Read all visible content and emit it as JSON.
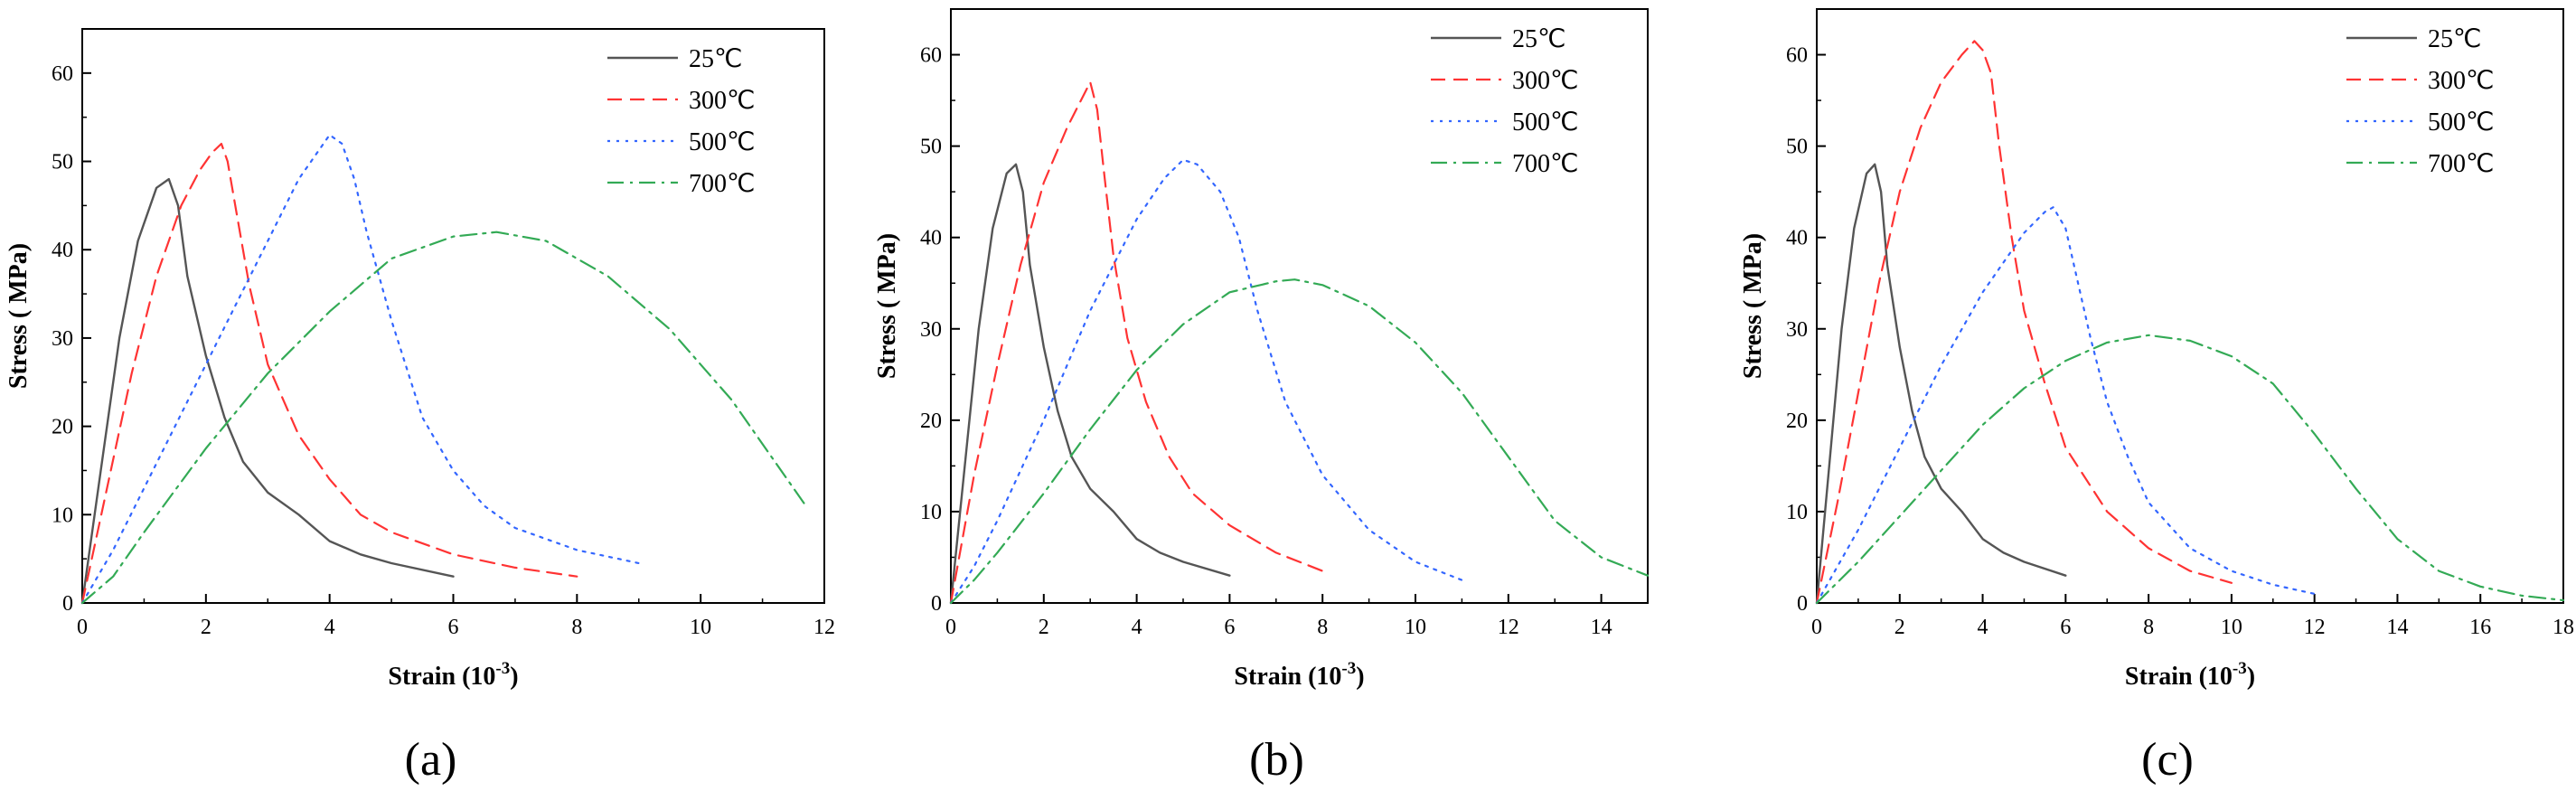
{
  "chart_data": [
    {
      "type": "line",
      "panel_label": "(a)",
      "xlabel": "Strain (10",
      "xlabel_sup": "-3",
      "xlabel_end": ")",
      "ylabel": "Stress ( MPa)",
      "xlim": [
        0,
        12
      ],
      "ylim": [
        0,
        65
      ],
      "xticks": [
        0,
        2,
        4,
        6,
        8,
        10,
        12
      ],
      "yticks": [
        0,
        10,
        20,
        30,
        40,
        50,
        60
      ],
      "legend_position": "top-right",
      "series": [
        {
          "name": "25℃",
          "color": "#555555",
          "dash": "solid",
          "x": [
            0,
            0.3,
            0.6,
            0.9,
            1.2,
            1.4,
            1.55,
            1.7,
            2.0,
            2.3,
            2.6,
            3.0,
            3.5,
            4.0,
            4.5,
            5.0,
            6.0
          ],
          "y": [
            0,
            15,
            30,
            41,
            47,
            48,
            45,
            37,
            28,
            21,
            16,
            12.5,
            10,
            7,
            5.5,
            4.5,
            3
          ]
        },
        {
          "name": "300℃",
          "color": "#ff3333",
          "dash": "dash",
          "x": [
            0,
            0.4,
            0.8,
            1.2,
            1.6,
            1.9,
            2.1,
            2.25,
            2.35,
            2.5,
            2.7,
            3.0,
            3.5,
            4.0,
            4.5,
            5.0,
            6.0,
            7.0,
            8.0
          ],
          "y": [
            0,
            13,
            26,
            37,
            45,
            49,
            51,
            52,
            50,
            44,
            36,
            27,
            19,
            14,
            10,
            8,
            5.5,
            4,
            3
          ]
        },
        {
          "name": "500℃",
          "color": "#3366ff",
          "dash": "dot",
          "x": [
            0,
            0.5,
            1.0,
            1.5,
            2.0,
            2.5,
            3.0,
            3.5,
            3.8,
            4.0,
            4.2,
            4.4,
            4.6,
            5.0,
            5.5,
            6.0,
            6.5,
            7.0,
            8.0,
            9.0
          ],
          "y": [
            0,
            6,
            13,
            20,
            27,
            34,
            41,
            48,
            51,
            53,
            52,
            48,
            42,
            32,
            21,
            15,
            11,
            8.5,
            6,
            4.5
          ]
        },
        {
          "name": "700℃",
          "color": "#33aa55",
          "dash": "dashdot",
          "x": [
            0,
            0.5,
            1.0,
            2.0,
            3.0,
            4.0,
            5.0,
            6.0,
            6.7,
            7.5,
            8.5,
            9.5,
            10.5,
            11.2,
            11.7
          ],
          "y": [
            0,
            3,
            8,
            17.5,
            26,
            33,
            39,
            41.5,
            42,
            41,
            37,
            31,
            23,
            16,
            11
          ]
        }
      ]
    },
    {
      "type": "line",
      "panel_label": "(b)",
      "xlabel": "Strain (10",
      "xlabel_sup": "-3",
      "xlabel_end": ")",
      "ylabel": "Stress ( MPa)",
      "xlim": [
        0,
        15
      ],
      "ylim": [
        0,
        65
      ],
      "xticks": [
        0,
        2,
        4,
        6,
        8,
        10,
        12,
        14
      ],
      "yticks": [
        0,
        10,
        20,
        30,
        40,
        50,
        60
      ],
      "legend_position": "top-right",
      "series": [
        {
          "name": "25℃",
          "color": "#555555",
          "dash": "solid",
          "x": [
            0,
            0.3,
            0.6,
            0.9,
            1.2,
            1.4,
            1.55,
            1.7,
            2.0,
            2.3,
            2.6,
            3.0,
            3.5,
            4.0,
            4.5,
            5.0,
            6.0
          ],
          "y": [
            0,
            15,
            30,
            41,
            47,
            48,
            45,
            37,
            28,
            21,
            16,
            12.5,
            10,
            7,
            5.5,
            4.5,
            3
          ]
        },
        {
          "name": "300℃",
          "color": "#ff3333",
          "dash": "dash",
          "x": [
            0,
            0.5,
            1.0,
            1.5,
            2.0,
            2.5,
            2.8,
            3.0,
            3.15,
            3.3,
            3.5,
            3.8,
            4.2,
            4.7,
            5.2,
            6.0,
            7.0,
            8.0
          ],
          "y": [
            0,
            14,
            26,
            37,
            46,
            52,
            55,
            57,
            54,
            47,
            38,
            29,
            22,
            16,
            12,
            8.5,
            5.5,
            3.5
          ]
        },
        {
          "name": "500℃",
          "color": "#3366ff",
          "dash": "dot",
          "x": [
            0,
            0.5,
            1.0,
            2.0,
            3.0,
            4.0,
            4.6,
            5.0,
            5.3,
            5.8,
            6.2,
            6.6,
            7.2,
            8.0,
            9.0,
            10.0,
            11.0
          ],
          "y": [
            0,
            4,
            9,
            20,
            32,
            42,
            46.5,
            48.5,
            48,
            45,
            40,
            32,
            22,
            14,
            8,
            4.5,
            2.5
          ]
        },
        {
          "name": "700℃",
          "color": "#33aa55",
          "dash": "dashdot",
          "x": [
            0,
            0.5,
            1.0,
            2.0,
            3.0,
            4.0,
            5.0,
            6.0,
            7.0,
            7.4,
            8.0,
            9.0,
            10.0,
            11.0,
            12.0,
            13.0,
            14.0,
            15.0
          ],
          "y": [
            0,
            2.5,
            5.5,
            12,
            19,
            25.5,
            30.5,
            34,
            35.2,
            35.4,
            34.8,
            32.5,
            28.5,
            23,
            16,
            9,
            5,
            3
          ]
        }
      ]
    },
    {
      "type": "line",
      "panel_label": "(c)",
      "xlabel": "Strain (10",
      "xlabel_sup": "-3",
      "xlabel_end": ")",
      "ylabel": "Stress ( MPa)",
      "xlim": [
        0,
        18
      ],
      "ylim": [
        0,
        65
      ],
      "xticks": [
        0,
        2,
        4,
        6,
        8,
        10,
        12,
        14,
        16,
        18
      ],
      "yticks": [
        0,
        10,
        20,
        30,
        40,
        50,
        60
      ],
      "legend_position": "top-right",
      "series": [
        {
          "name": "25℃",
          "color": "#555555",
          "dash": "solid",
          "x": [
            0,
            0.3,
            0.6,
            0.9,
            1.2,
            1.4,
            1.55,
            1.7,
            2.0,
            2.3,
            2.6,
            3.0,
            3.5,
            4.0,
            4.5,
            5.0,
            6.0
          ],
          "y": [
            0,
            15,
            30,
            41,
            47,
            48,
            45,
            37,
            28,
            21,
            16,
            12.5,
            10,
            7,
            5.5,
            4.5,
            3
          ]
        },
        {
          "name": "300℃",
          "color": "#ff3333",
          "dash": "dash",
          "x": [
            0,
            0.5,
            1.0,
            1.5,
            2.0,
            2.5,
            3.0,
            3.5,
            3.8,
            4.0,
            4.2,
            4.4,
            4.7,
            5.0,
            5.5,
            6.0,
            7.0,
            8.0,
            9.0,
            10.0
          ],
          "y": [
            0,
            11,
            23,
            35,
            45,
            52,
            57,
            60,
            61.5,
            60.5,
            58,
            50,
            40,
            32,
            24,
            17,
            10,
            6,
            3.5,
            2.2
          ]
        },
        {
          "name": "500℃",
          "color": "#3366ff",
          "dash": "dot",
          "x": [
            0,
            0.5,
            1.0,
            2.0,
            3.0,
            4.0,
            5.0,
            5.5,
            5.7,
            6.0,
            6.3,
            6.6,
            7.0,
            7.5,
            8.0,
            9.0,
            10.0,
            11.0,
            12.0
          ],
          "y": [
            0,
            4,
            8,
            17,
            26,
            34,
            40.5,
            42.8,
            43.3,
            41,
            35,
            29,
            22,
            16,
            11,
            6,
            3.5,
            2,
            1
          ]
        },
        {
          "name": "700℃",
          "color": "#33aa55",
          "dash": "dashdot",
          "x": [
            0,
            1.0,
            2.0,
            3.0,
            4.0,
            5.0,
            6.0,
            7.0,
            8.0,
            9.0,
            10.0,
            11.0,
            12.0,
            13.0,
            14.0,
            15.0,
            16.0,
            17.0,
            18.0
          ],
          "y": [
            0,
            4.5,
            9.5,
            14.5,
            19.5,
            23.5,
            26.5,
            28.5,
            29.3,
            28.7,
            27,
            24,
            18.5,
            12.5,
            7,
            3.5,
            1.8,
            0.8,
            0.3
          ]
        }
      ]
    }
  ]
}
